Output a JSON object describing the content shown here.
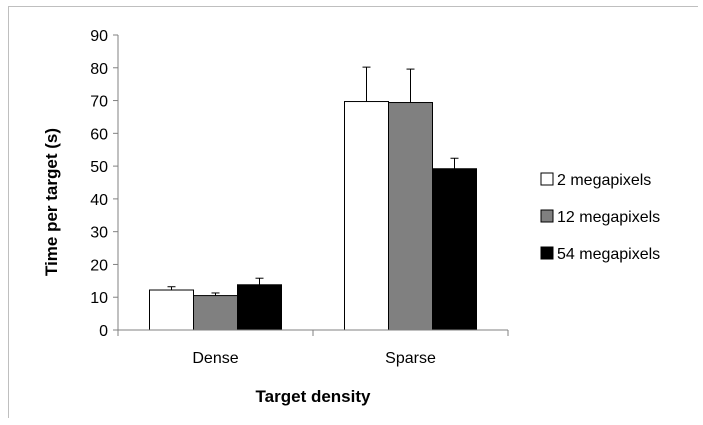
{
  "chart_data": {
    "type": "bar",
    "xlabel": "Target density",
    "ylabel": "Time per target (s)",
    "ylim": [
      0,
      90
    ],
    "yticks": [
      0,
      10,
      20,
      30,
      40,
      50,
      60,
      70,
      80,
      90
    ],
    "categories": [
      "Dense",
      "Sparse"
    ],
    "legend_position": "right",
    "series": [
      {
        "name": "2 megapixels",
        "color": "#ffffff",
        "values": [
          12.2,
          69.7
        ],
        "errors": [
          1.0,
          10.5
        ]
      },
      {
        "name": "12 megapixels",
        "color": "#808080",
        "values": [
          10.5,
          69.4
        ],
        "errors": [
          0.8,
          10.2
        ]
      },
      {
        "name": "54 megapixels",
        "color": "#000000",
        "values": [
          13.8,
          49.2
        ],
        "errors": [
          2.0,
          3.2
        ]
      }
    ],
    "grid": false
  }
}
